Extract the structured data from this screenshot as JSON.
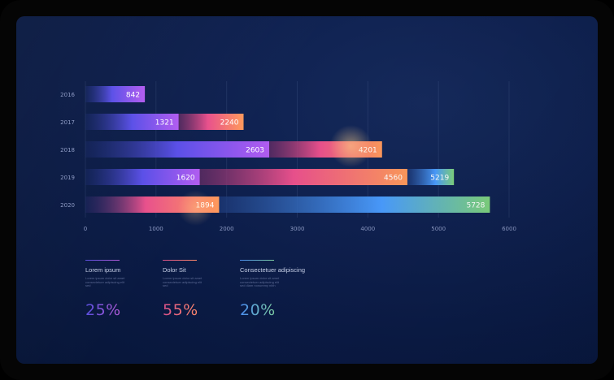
{
  "chart_data": {
    "type": "bar",
    "orientation": "horizontal",
    "stacked": false,
    "categories": [
      "2016",
      "2017",
      "2018",
      "2019",
      "2020"
    ],
    "bars": [
      {
        "category": "2016",
        "segments": [
          842
        ]
      },
      {
        "category": "2017",
        "segments": [
          1321,
          2240
        ]
      },
      {
        "category": "2018",
        "segments": [
          2603,
          4201
        ]
      },
      {
        "category": "2019",
        "segments": [
          1620,
          4560,
          5219
        ]
      },
      {
        "category": "2020",
        "segments": [
          1894,
          5728
        ]
      }
    ],
    "xticks": [
      "0",
      "1000",
      "2000",
      "3000",
      "4000",
      "5000",
      "6000"
    ],
    "xlim": [
      0,
      6000
    ],
    "grid": true,
    "colors": {
      "purple": "#7b4dff",
      "pink": "#e8508c",
      "orange": "#ff9a5c",
      "blue": "#4a9cff",
      "green": "#7fd37e"
    }
  },
  "legend": [
    {
      "title": "Lorem ipsum",
      "desc": "Lorem ipsum dolor sit amet consectetuer adipiscing elit sed",
      "percent": "25%",
      "from": "#5a4fe0",
      "to": "#b45bd6"
    },
    {
      "title": "Dolor Sit",
      "desc": "Lorem ipsum dolor sit amet consectetuer adipiscing elit sed",
      "percent": "55%",
      "from": "#d9508a",
      "to": "#ff8a6a"
    },
    {
      "title": "Consectetuer adipiscing",
      "desc": "Lorem ipsum dolor sit amet consectetuer adipiscing elit sed diam nonummy nibh",
      "percent": "20%",
      "from": "#4a8cf0",
      "to": "#7fd0a0"
    }
  ]
}
